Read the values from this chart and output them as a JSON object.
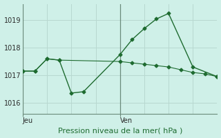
{
  "background_color": "#cff0e8",
  "line_color": "#1e6b30",
  "grid_color": "#b8d8d0",
  "sep_color": "#6a8a7a",
  "title": "Pression niveau de la mer( hPa )",
  "xlabel_day1": "Jeu",
  "xlabel_day2": "Ven",
  "ylim": [
    1015.6,
    1019.6
  ],
  "yticks": [
    1016,
    1017,
    1018,
    1019
  ],
  "xlim": [
    0,
    16
  ],
  "day1_x": 0,
  "day2_x": 8,
  "series1_x": [
    0,
    1,
    2,
    3,
    4,
    5,
    8,
    9,
    10,
    11,
    12,
    14,
    16
  ],
  "series1_y": [
    1017.15,
    1017.15,
    1017.6,
    1017.55,
    1016.35,
    1016.4,
    1017.75,
    1018.3,
    1018.7,
    1019.05,
    1019.25,
    1017.3,
    1016.95
  ],
  "series2_x": [
    0,
    1,
    2,
    3,
    8,
    9,
    10,
    11,
    12,
    13,
    14,
    15,
    16
  ],
  "series2_y": [
    1017.15,
    1017.15,
    1017.6,
    1017.55,
    1017.5,
    1017.45,
    1017.4,
    1017.35,
    1017.3,
    1017.2,
    1017.1,
    1017.05,
    1016.95
  ],
  "ytick_fontsize": 7,
  "xtick_fontsize": 7,
  "title_fontsize": 8
}
